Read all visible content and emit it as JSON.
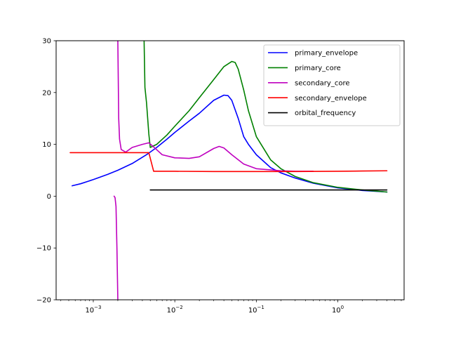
{
  "chart_data": {
    "type": "line",
    "title": "",
    "xlabel": "",
    "ylabel": "",
    "xscale": "log",
    "xlim": [
      0.00035,
      6.5
    ],
    "ylim": [
      -20,
      30
    ],
    "grid": false,
    "legend_position": "top-right",
    "x_ticks": [
      {
        "value": 0.001,
        "base": "10",
        "exp": "−3"
      },
      {
        "value": 0.01,
        "base": "10",
        "exp": "−2"
      },
      {
        "value": 0.1,
        "base": "10",
        "exp": "−1"
      },
      {
        "value": 1,
        "base": "10",
        "exp": "0"
      }
    ],
    "y_ticks": [
      {
        "value": -20,
        "label": "−20"
      },
      {
        "value": -10,
        "label": "−10"
      },
      {
        "value": 0,
        "label": "0"
      },
      {
        "value": 10,
        "label": "10"
      },
      {
        "value": 20,
        "label": "20"
      },
      {
        "value": 30,
        "label": "30"
      }
    ],
    "series": [
      {
        "name": "primary_envelope",
        "color": "#0000ff",
        "points": [
          [
            0.00055,
            2.0
          ],
          [
            0.0007,
            2.4
          ],
          [
            0.001,
            3.2
          ],
          [
            0.0015,
            4.2
          ],
          [
            0.002,
            5.0
          ],
          [
            0.003,
            6.3
          ],
          [
            0.0045,
            8.0
          ],
          [
            0.006,
            9.4
          ],
          [
            0.008,
            11.0
          ],
          [
            0.01,
            12.3
          ],
          [
            0.015,
            14.5
          ],
          [
            0.02,
            16.0
          ],
          [
            0.03,
            18.5
          ],
          [
            0.04,
            19.5
          ],
          [
            0.045,
            19.4
          ],
          [
            0.05,
            18.5
          ],
          [
            0.06,
            15.0
          ],
          [
            0.07,
            11.5
          ],
          [
            0.08,
            10.0
          ],
          [
            0.1,
            8.0
          ],
          [
            0.15,
            5.5
          ],
          [
            0.2,
            4.5
          ],
          [
            0.3,
            3.5
          ],
          [
            0.5,
            2.5
          ],
          [
            1,
            1.6
          ],
          [
            2,
            1.1
          ],
          [
            4,
            0.8
          ]
        ]
      },
      {
        "name": "primary_core",
        "color": "#008000",
        "points": [
          [
            0.0042,
            30.0
          ],
          [
            0.0043,
            21.0
          ],
          [
            0.0045,
            18.0
          ],
          [
            0.0048,
            12.0
          ],
          [
            0.005,
            9.4
          ],
          [
            0.006,
            10.0
          ],
          [
            0.008,
            11.8
          ],
          [
            0.01,
            13.5
          ],
          [
            0.015,
            16.5
          ],
          [
            0.02,
            19.0
          ],
          [
            0.03,
            22.5
          ],
          [
            0.04,
            25.0
          ],
          [
            0.05,
            26.0
          ],
          [
            0.055,
            25.8
          ],
          [
            0.06,
            24.5
          ],
          [
            0.07,
            20.5
          ],
          [
            0.08,
            16.5
          ],
          [
            0.1,
            11.5
          ],
          [
            0.15,
            7.0
          ],
          [
            0.2,
            5.3
          ],
          [
            0.3,
            3.8
          ],
          [
            0.5,
            2.6
          ],
          [
            1,
            1.7
          ],
          [
            2,
            1.2
          ],
          [
            4,
            0.8
          ]
        ]
      },
      {
        "name": "secondary_core",
        "color": "#bf00bf",
        "points": [
          [
            0.0018,
            0.0
          ],
          [
            0.00185,
            -0.3
          ],
          [
            0.0019,
            -2.0
          ],
          [
            0.00195,
            -10.0
          ],
          [
            0.002,
            -20.0
          ],
          [
            null,
            null
          ],
          [
            0.002,
            30.0
          ],
          [
            0.00205,
            15.0
          ],
          [
            0.0021,
            11.0
          ],
          [
            0.0022,
            9.0
          ],
          [
            0.0025,
            8.5
          ],
          [
            0.003,
            9.4
          ],
          [
            0.004,
            10.0
          ],
          [
            0.0048,
            10.3
          ],
          [
            0.0055,
            9.5
          ],
          [
            0.007,
            8.0
          ],
          [
            0.01,
            7.4
          ],
          [
            0.015,
            7.3
          ],
          [
            0.02,
            7.6
          ],
          [
            0.03,
            9.2
          ],
          [
            0.035,
            9.6
          ],
          [
            0.04,
            9.3
          ],
          [
            0.05,
            8.0
          ],
          [
            0.07,
            6.2
          ],
          [
            0.1,
            5.3
          ],
          [
            0.2,
            4.9
          ],
          [
            0.3,
            4.8
          ],
          [
            0.5,
            4.8
          ]
        ]
      },
      {
        "name": "secondary_envelope",
        "color": "#ff0000",
        "points": [
          [
            0.00052,
            8.4
          ],
          [
            0.001,
            8.4
          ],
          [
            0.002,
            8.4
          ],
          [
            0.003,
            8.4
          ],
          [
            0.0048,
            8.4
          ],
          [
            0.0055,
            4.8
          ],
          [
            0.01,
            4.8
          ],
          [
            0.03,
            4.75
          ],
          [
            0.1,
            4.75
          ],
          [
            0.3,
            4.75
          ],
          [
            1,
            4.8
          ],
          [
            2,
            4.85
          ],
          [
            4,
            4.9
          ]
        ]
      },
      {
        "name": "orbital_frequency",
        "color": "#000000",
        "points": [
          [
            0.005,
            1.2
          ],
          [
            0.01,
            1.2
          ],
          [
            0.1,
            1.2
          ],
          [
            1,
            1.2
          ],
          [
            4,
            1.2
          ]
        ]
      }
    ]
  }
}
